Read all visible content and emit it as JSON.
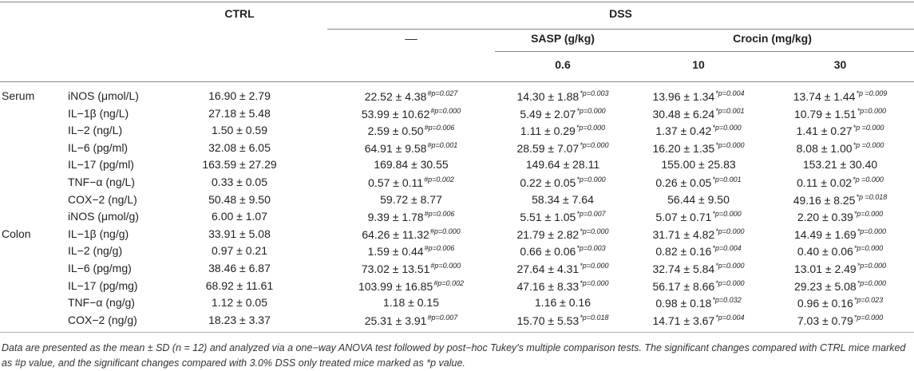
{
  "headers": {
    "ctrl": "CTRL",
    "dss": "DSS",
    "dss_only": "––",
    "sasp": "SASP (g/kg)",
    "crocin": "Crocin (mg/kg)",
    "sasp_dose": "0.6",
    "crocin_dose_low": "10",
    "crocin_dose_high": "30"
  },
  "groups": {
    "serum": "Serum",
    "colon": "Colon"
  },
  "rows": [
    {
      "label": "iNOS (μmol/L)",
      "ctrl": "16.90 ± 2.79",
      "dss": "22.52 ± 4.38",
      "dss_p": "#p=0.027",
      "sasp": "14.30 ± 1.88",
      "sasp_p": "*p=0.003",
      "cr10": "13.96 ± 1.34",
      "cr10_p": "*p=0.004",
      "cr30": "13.74 ± 1.44",
      "cr30_p": "*p =0.009"
    },
    {
      "label": "IL−1β (ng/L)",
      "ctrl": "27.18 ± 5.48",
      "dss": "53.99 ± 10.62",
      "dss_p": "#p=0.000",
      "sasp": "5.49 ± 2.07",
      "sasp_p": "*p=0.000",
      "cr10": "30.48 ± 6.24",
      "cr10_p": "*p=0.001",
      "cr30": "10.79 ± 1.51",
      "cr30_p": "*p=0.000"
    },
    {
      "label": "IL−2 (ng/L)",
      "ctrl": "1.50 ± 0.59",
      "dss": "2.59 ± 0.50",
      "dss_p": "#p=0.006",
      "sasp": "1.11 ± 0.29",
      "sasp_p": "*p=0.000",
      "cr10": "1.37 ± 0.42",
      "cr10_p": "*p=0.000",
      "cr30": "1.41 ± 0.27",
      "cr30_p": "*p =0.000"
    },
    {
      "label": "IL−6 (pg/ml)",
      "ctrl": "32.08 ± 6.05",
      "dss": "64.91 ± 9.58",
      "dss_p": "#p=0.001",
      "sasp": "28.59 ± 7.07",
      "sasp_p": "*p=0.000",
      "cr10": "16.20 ± 1.35",
      "cr10_p": "*p=0.000",
      "cr30": "8.08 ± 1.00",
      "cr30_p": "*p =0.000"
    },
    {
      "label": "IL−17 (pg/ml)",
      "ctrl": "163.59 ± 27.29",
      "dss": "169.84 ± 30.55",
      "dss_p": "",
      "sasp": "149.64 ± 28.11",
      "sasp_p": "",
      "cr10": "155.00 ± 25.83",
      "cr10_p": "",
      "cr30": "153.21 ± 30.40",
      "cr30_p": ""
    },
    {
      "label": "TNF−α (ng/L)",
      "ctrl": "0.33 ± 0.05",
      "dss": "0.57 ± 0.11",
      "dss_p": "#p=0.002",
      "sasp": "0.22 ± 0.05",
      "sasp_p": "*p=0.000",
      "cr10": "0.26 ± 0.05",
      "cr10_p": "*p=0.001",
      "cr30": "0.11 ± 0.02",
      "cr30_p": "*p =0.000"
    },
    {
      "label": "COX−2 (ng/L)",
      "ctrl": "50.48 ± 9.50",
      "dss": "59.72 ± 8.77",
      "dss_p": "",
      "sasp": "58.34 ± 7.64",
      "sasp_p": "",
      "cr10": "56.44 ± 9.50",
      "cr10_p": "",
      "cr30": "49.16 ± 8.25",
      "cr30_p": "*p =0.018"
    },
    {
      "label": "iNOS (μmol/g)",
      "ctrl": "6.00 ± 1.07",
      "dss": "9.39 ± 1.78",
      "dss_p": "#p=0.006",
      "sasp": "5.51 ± 1.05",
      "sasp_p": "*p=0.007",
      "cr10": "5.07 ± 0.71",
      "cr10_p": "*p=0.000",
      "cr30": "2.20 ± 0.39",
      "cr30_p": "*p=0.000"
    },
    {
      "label": "IL−1β (ng/g)",
      "ctrl": "33.91 ± 5.08",
      "dss": "64.26 ± 11.32",
      "dss_p": "#p=0.000",
      "sasp": "21.79 ± 2.82",
      "sasp_p": "*p=0.000",
      "cr10": "31.71 ± 4.82",
      "cr10_p": "*p=0.000",
      "cr30": "14.49 ± 1.69",
      "cr30_p": "*p=0.000"
    },
    {
      "label": "IL−2 (ng/g)",
      "ctrl": "0.97 ± 0.21",
      "dss": "1.59 ± 0.44",
      "dss_p": "#p=0.006",
      "sasp": "0.66 ± 0.06",
      "sasp_p": "*p=0.003",
      "cr10": "0.82 ± 0.16",
      "cr10_p": "*p=0.004",
      "cr30": "0.40 ± 0.06",
      "cr30_p": "*p=0.000"
    },
    {
      "label": "IL−6 (pg/mg)",
      "ctrl": "38.46 ± 6.87",
      "dss": "73.02 ± 13.51",
      "dss_p": "#p=0.000",
      "sasp": "27.64 ± 4.31",
      "sasp_p": "*p=0.000",
      "cr10": "32.74 ± 5.84",
      "cr10_p": "*p=0.000",
      "cr30": "13.01 ± 2.49",
      "cr30_p": "*p=0.000"
    },
    {
      "label": "IL−17 (pg/mg)",
      "ctrl": "68.92 ± 11.61",
      "dss": "103.99 ± 16.85",
      "dss_p": "#p=0.002",
      "sasp": "47.16 ± 8.33",
      "sasp_p": "*p=0.000",
      "cr10": "56.17 ± 8.66",
      "cr10_p": "*p=0.000",
      "cr30": "29.23 ± 5.08",
      "cr30_p": "*p=0.000"
    },
    {
      "label": "TNF−α (ng/g)",
      "ctrl": "1.12 ± 0.05",
      "dss": "1.18 ± 0.15",
      "dss_p": "",
      "sasp": "1.16 ± 0.16",
      "sasp_p": "",
      "cr10": "0.98 ± 0.18",
      "cr10_p": "*p=0.032",
      "cr30": "0.96 ± 0.16",
      "cr30_p": "*p=0.023"
    },
    {
      "label": "COX−2 (ng/g)",
      "ctrl": "18.23 ± 3.37",
      "dss": "25.31 ± 3.91",
      "dss_p": "#p=0.007",
      "sasp": "15.70 ± 5.53",
      "sasp_p": "*p=0.018",
      "cr10": "14.71 ± 3.67",
      "cr10_p": "*p=0.004",
      "cr30": "7.03 ± 0.79",
      "cr30_p": "*p=0.000"
    }
  ],
  "footnote": "Data are presented as the mean ± SD (n = 12) and analyzed via a one−way ANOVA test followed by post−hoc Tukey's multiple comparison tests. The significant changes compared with CTRL mice marked as #p value, and the significant changes compared with 3.0% DSS only treated mice marked as *p value."
}
